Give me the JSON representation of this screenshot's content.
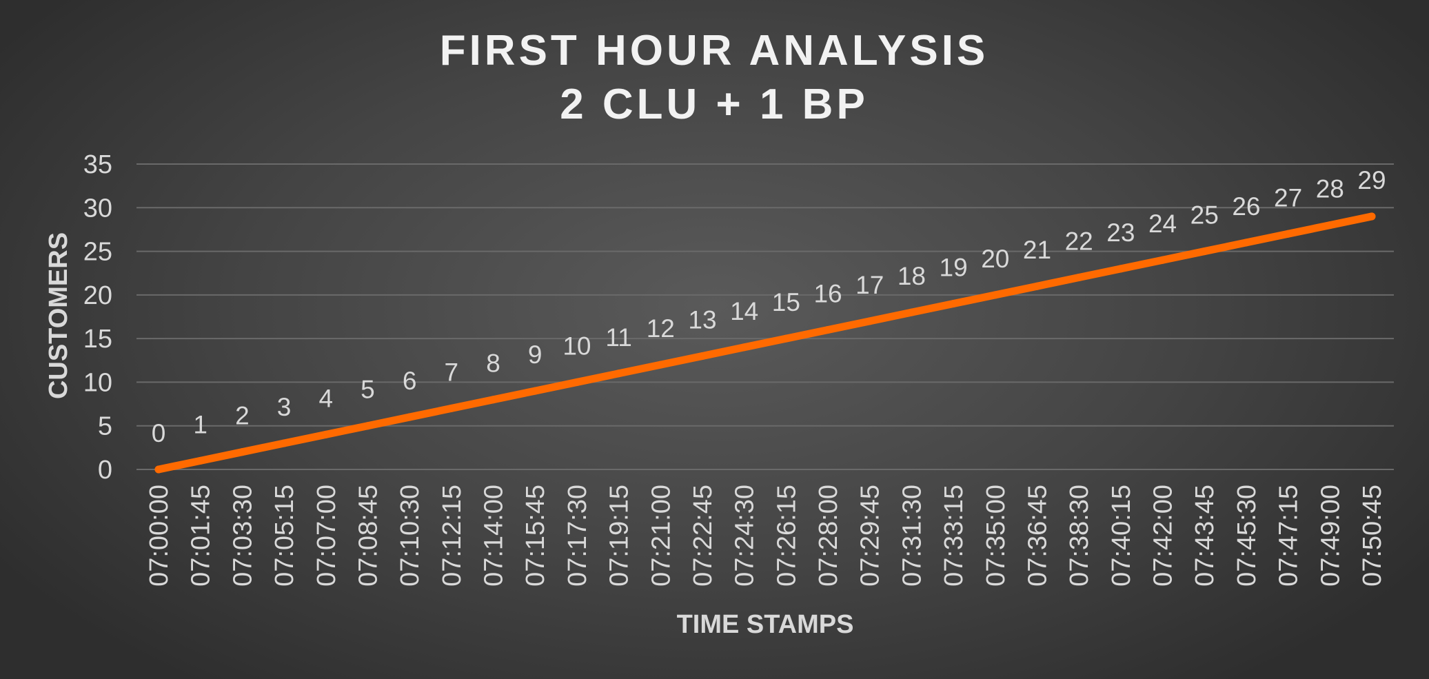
{
  "chart_data": {
    "type": "line",
    "title_lines": [
      "FIRST HOUR ANALYSIS",
      "2 CLU + 1 BP"
    ],
    "xlabel": "TIME STAMPS",
    "ylabel": "CUSTOMERS",
    "ylim": [
      0,
      35
    ],
    "y_ticks": [
      0,
      5,
      10,
      15,
      20,
      25,
      30,
      35
    ],
    "grid": true,
    "legend": "none",
    "categories": [
      "07:00:00",
      "07:01:45",
      "07:03:30",
      "07:05:15",
      "07:07:00",
      "07:08:45",
      "07:10:30",
      "07:12:15",
      "07:14:00",
      "07:15:45",
      "07:17:30",
      "07:19:15",
      "07:21:00",
      "07:22:45",
      "07:24:30",
      "07:26:15",
      "07:28:00",
      "07:29:45",
      "07:31:30",
      "07:33:15",
      "07:35:00",
      "07:36:45",
      "07:38:30",
      "07:40:15",
      "07:42:00",
      "07:43:45",
      "07:45:30",
      "07:47:15",
      "07:49:00",
      "07:50:45"
    ],
    "series": [
      {
        "color": "#ff6a00",
        "values": [
          0,
          1,
          2,
          3,
          4,
          5,
          6,
          7,
          8,
          9,
          10,
          11,
          12,
          13,
          14,
          15,
          16,
          17,
          18,
          19,
          20,
          21,
          22,
          23,
          24,
          25,
          26,
          27,
          28,
          29
        ]
      }
    ]
  }
}
